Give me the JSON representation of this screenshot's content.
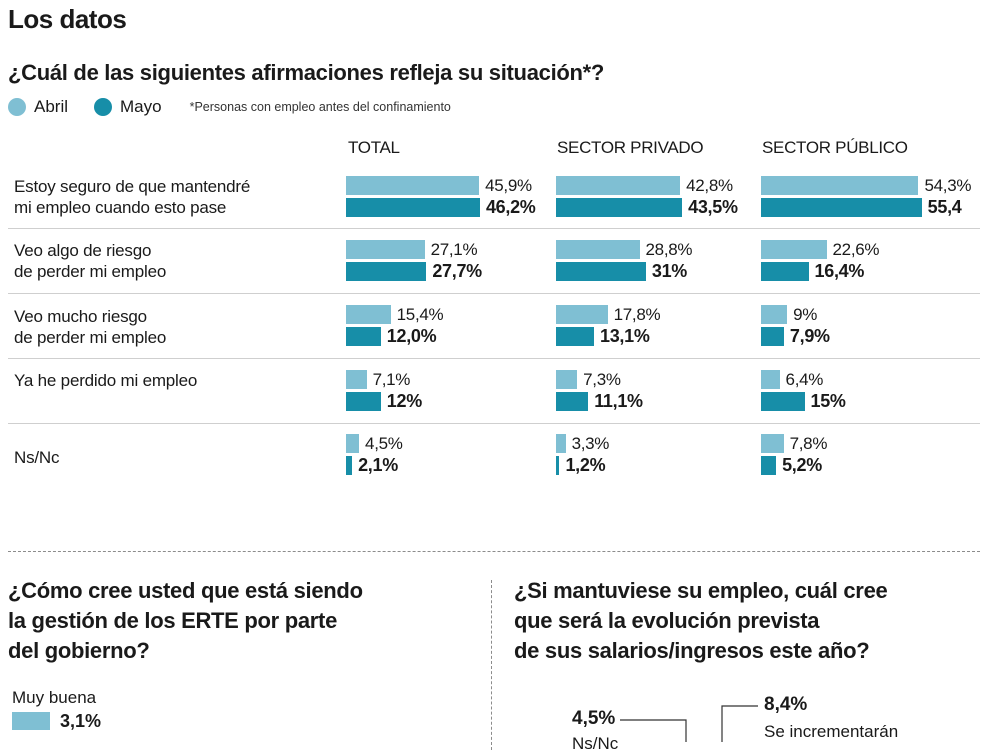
{
  "header": {
    "title": "Los datos",
    "question": "¿Cuál de las siguientes afirmaciones refleja su situación*?",
    "legend": [
      {
        "label": "Abril",
        "color": "#7fbfd3"
      },
      {
        "label": "Mayo",
        "color": "#178ea8"
      }
    ],
    "note": "*Personas con empleo antes del confinamiento"
  },
  "chart_data": {
    "type": "bar",
    "orientation": "horizontal",
    "columns": [
      "TOTAL",
      "SECTOR PRIVADO",
      "SECTOR PÚBLICO"
    ],
    "series_names": [
      "Abril",
      "Mayo"
    ],
    "rows": [
      {
        "label_lines": [
          "Estoy seguro de que mantendré",
          "mi empleo cuando esto pase"
        ],
        "values": [
          [
            45.9,
            46.2
          ],
          [
            42.8,
            43.5
          ],
          [
            54.3,
            55.4
          ]
        ],
        "labels": [
          [
            "45,9%",
            "46,2%"
          ],
          [
            "42,8%",
            "43,5%"
          ],
          [
            "54,3%",
            "55,4"
          ]
        ]
      },
      {
        "label_lines": [
          "Veo algo de riesgo",
          "de perder mi empleo"
        ],
        "values": [
          [
            27.1,
            27.7
          ],
          [
            28.8,
            31
          ],
          [
            22.6,
            16.4
          ]
        ],
        "labels": [
          [
            "27,1%",
            "27,7%"
          ],
          [
            "28,8%",
            "31%"
          ],
          [
            "22,6%",
            "16,4%"
          ]
        ]
      },
      {
        "label_lines": [
          "Veo mucho riesgo",
          "de perder mi empleo"
        ],
        "values": [
          [
            15.4,
            12.0
          ],
          [
            17.8,
            13.1
          ],
          [
            9,
            7.9
          ]
        ],
        "labels": [
          [
            "15,4%",
            "12,0%"
          ],
          [
            "17,8%",
            "13,1%"
          ],
          [
            "9%",
            "7,9%"
          ]
        ]
      },
      {
        "label_lines": [
          "Ya he perdido mi empleo"
        ],
        "values": [
          [
            7.1,
            12
          ],
          [
            7.3,
            11.1
          ],
          [
            6.4,
            15
          ]
        ],
        "labels": [
          [
            "7,1%",
            "12%"
          ],
          [
            "7,3%",
            "11,1%"
          ],
          [
            "6,4%",
            "15%"
          ]
        ]
      },
      {
        "label_lines": [
          "Ns/Nc"
        ],
        "values": [
          [
            4.5,
            2.1
          ],
          [
            3.3,
            1.2
          ],
          [
            7.8,
            5.2
          ]
        ],
        "labels": [
          [
            "4,5%",
            "2,1%"
          ],
          [
            "3,3%",
            "1,2%"
          ],
          [
            "7,8%",
            "5,2%"
          ]
        ]
      }
    ]
  },
  "erte": {
    "question_lines": [
      "¿Cómo cree usted que está siendo",
      "la gestión de los ERTE por parte",
      "del gobierno?"
    ],
    "label": "Muy buena",
    "value": 3.1,
    "value_label": "3,1%"
  },
  "salarios": {
    "question_lines": [
      "¿Si mantuviese su empleo, cuál cree",
      "que será la evolución prevista",
      "de sus salarios/ingresos este año?"
    ],
    "items": [
      {
        "value": 4.5,
        "value_label": "4,5%",
        "label": "Ns/Nc"
      },
      {
        "value": 8.4,
        "value_label": "8,4%",
        "label": "Se incrementarán"
      }
    ]
  }
}
